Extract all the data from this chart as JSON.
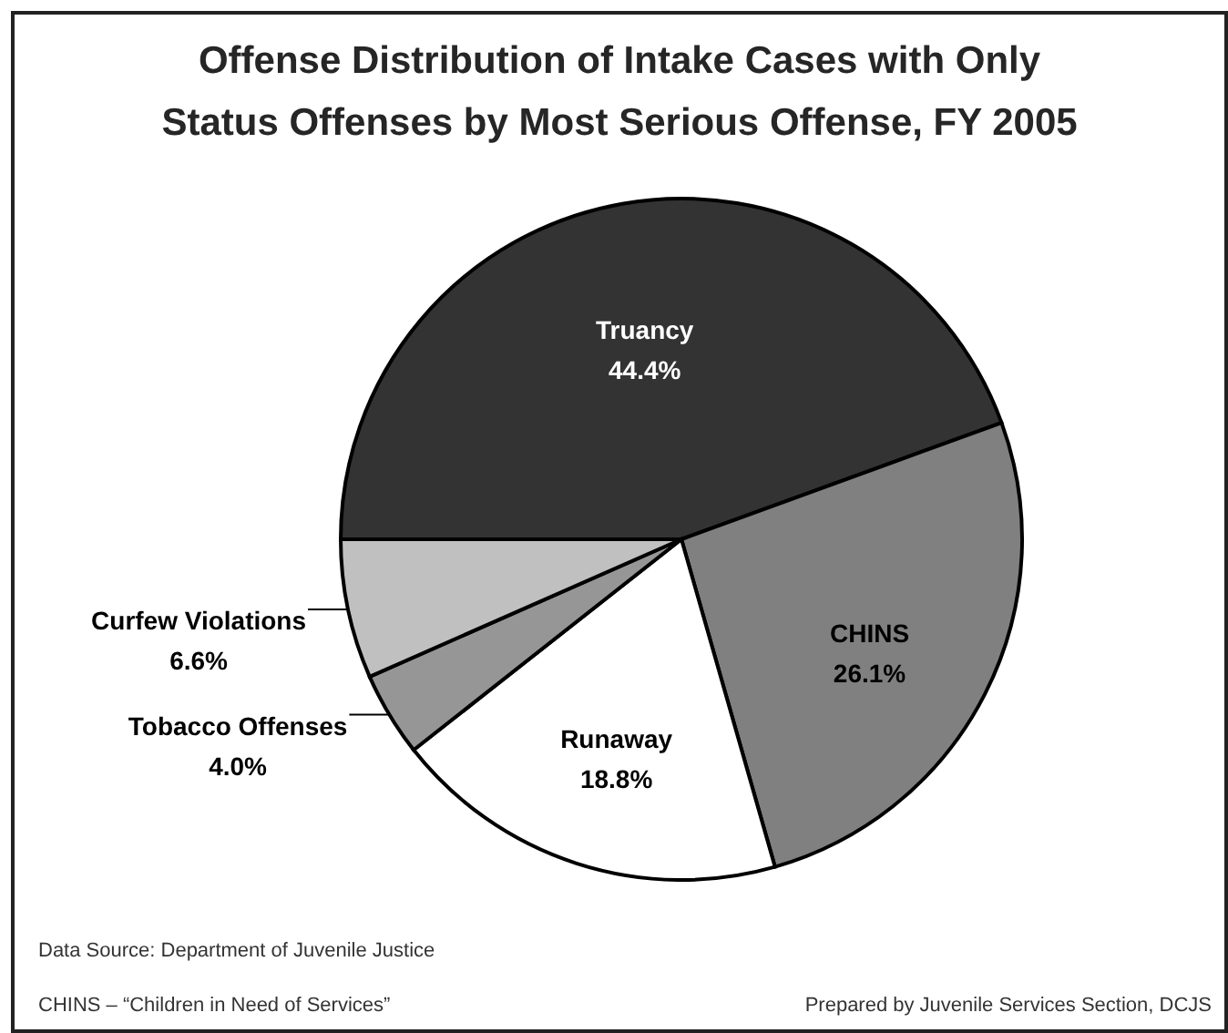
{
  "chart_data": {
    "type": "pie",
    "title": "Offense Distribution of Intake Cases with Only Status Offenses by Most Serious Offense, FY 2005",
    "categories": [
      "Truancy",
      "CHINS",
      "Runaway",
      "Tobacco Offenses",
      "Curfew Violations"
    ],
    "values": [
      44.4,
      26.1,
      18.8,
      4.0,
      6.6
    ],
    "value_labels": [
      "44.4%",
      "26.1%",
      "18.8%",
      "4.0%",
      "6.6%"
    ],
    "colors": [
      "#333333",
      "#808080",
      "#ffffff",
      "#969696",
      "#c0c0c0"
    ],
    "annotations": [
      "Data Source:  Department of Juvenile Justice",
      "CHINS – “Children in Need of Services”",
      "Prepared by Juvenile Services Section, DCJS"
    ]
  }
}
